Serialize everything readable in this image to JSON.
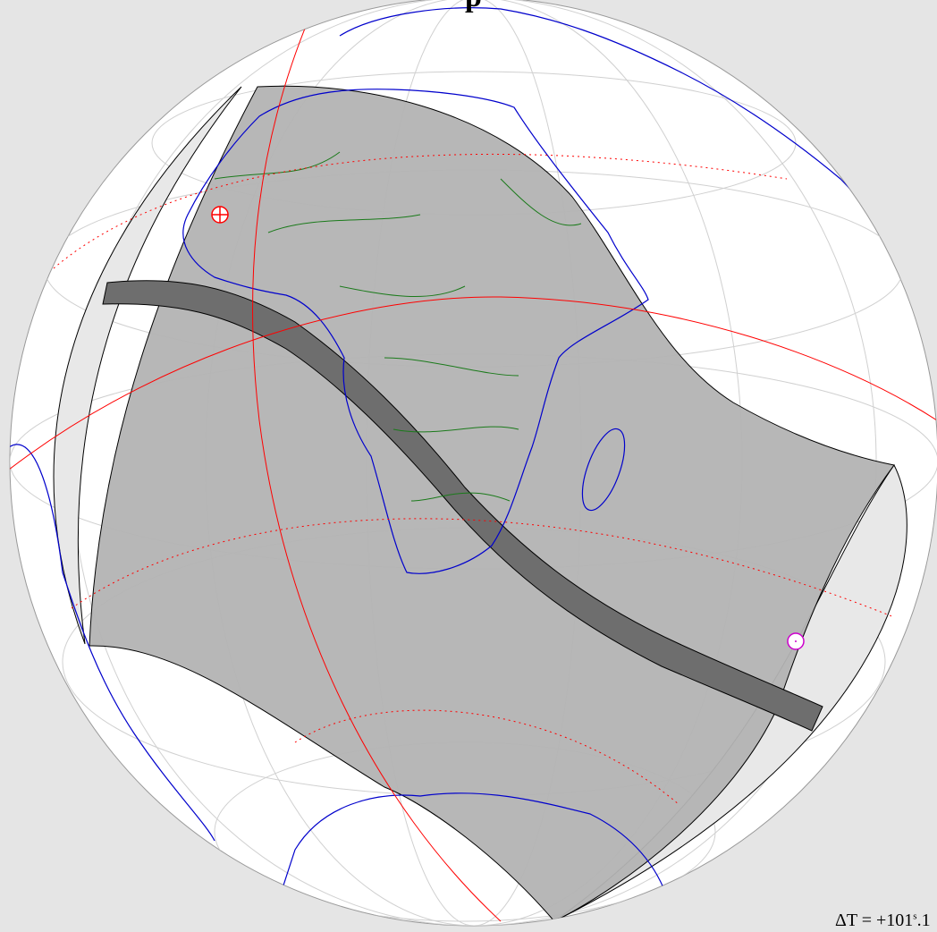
{
  "title_fragment": "p",
  "delta_t": {
    "prefix": "ΔT = +101",
    "unit": "s",
    "fraction": ".1"
  }
}
